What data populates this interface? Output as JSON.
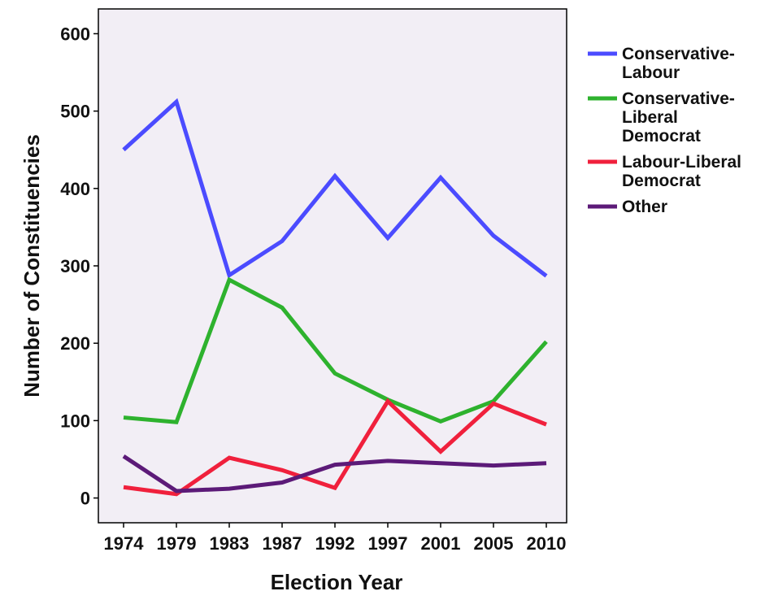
{
  "chart_data": {
    "type": "line",
    "title": "",
    "xlabel": "Election Year",
    "ylabel": "Number of Constituencies",
    "categories": [
      "1974",
      "1979",
      "1983",
      "1987",
      "1992",
      "1997",
      "2001",
      "2005",
      "2010"
    ],
    "ylim": [
      -32,
      632
    ],
    "yticks": [
      0,
      100,
      200,
      300,
      400,
      500,
      600
    ],
    "ytick_labels": [
      "0",
      "100",
      "200",
      "300",
      "400",
      "500",
      "600"
    ],
    "grid": false,
    "legend_position": "right",
    "plot_background": "#f2eef5",
    "series": [
      {
        "name": "Conservative-Labour",
        "legend_lines": [
          "Conservative-",
          "Labour"
        ],
        "color": "#4b4bff",
        "values": [
          450,
          512,
          288,
          332,
          416,
          336,
          414,
          339,
          287
        ]
      },
      {
        "name": "Conservative-Liberal Democrat",
        "legend_lines": [
          "Conservative-",
          "Liberal",
          "Democrat"
        ],
        "color": "#2eb22e",
        "values": [
          104,
          98,
          282,
          246,
          161,
          127,
          99,
          125,
          202
        ]
      },
      {
        "name": "Labour-Liberal Democrat",
        "legend_lines": [
          "Labour-Liberal",
          "Democrat"
        ],
        "color": "#f0203c",
        "values": [
          14,
          5,
          52,
          36,
          13,
          125,
          60,
          122,
          95
        ]
      },
      {
        "name": "Other",
        "legend_lines": [
          "Other"
        ],
        "color": "#5c1a78",
        "values": [
          54,
          9,
          12,
          20,
          43,
          48,
          45,
          42,
          45
        ]
      }
    ]
  }
}
